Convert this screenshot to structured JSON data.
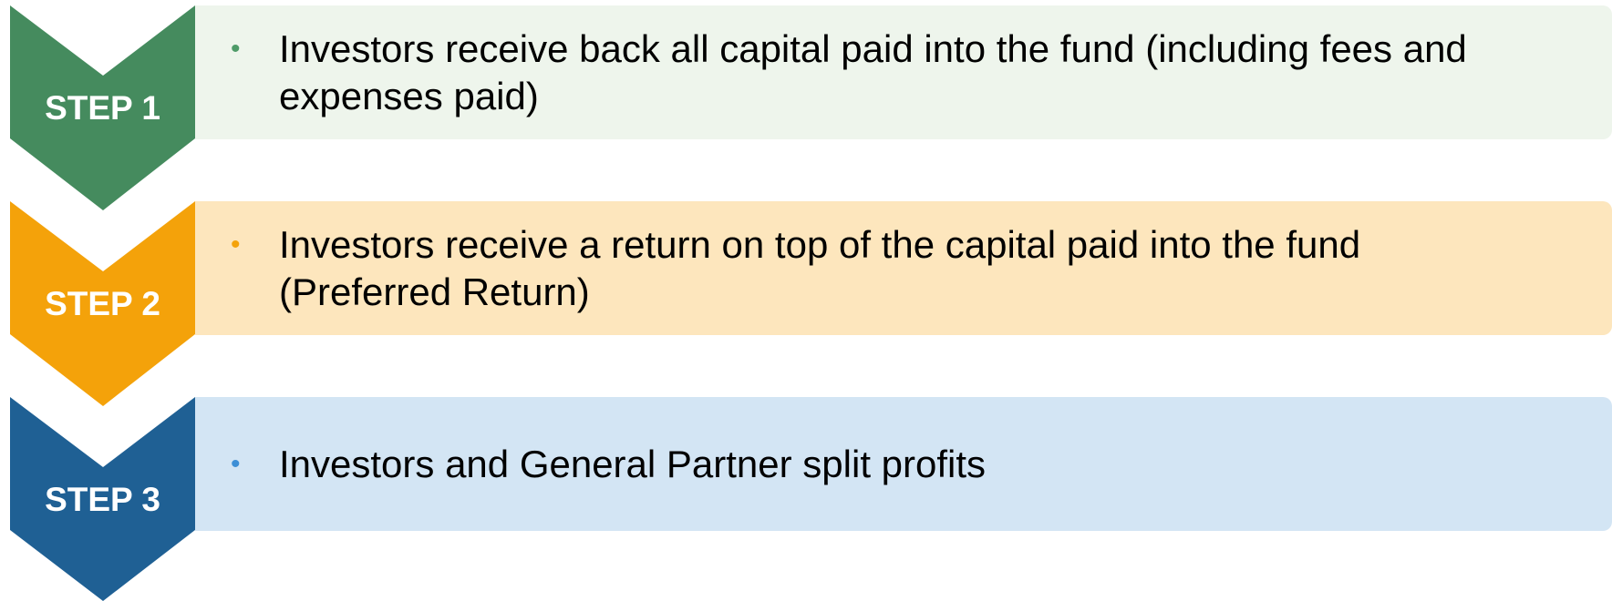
{
  "steps": [
    {
      "label": "STEP 1",
      "lines": [
        "Investors receive back all capital paid into the fund (including fees and",
        "expenses paid)"
      ]
    },
    {
      "label": "STEP 2",
      "lines": [
        "Investors receive a return on top of the capital paid into the fund",
        "(Preferred Return)"
      ]
    },
    {
      "label": "STEP 3",
      "lines": [
        "Investors and General Partner split profits"
      ]
    }
  ]
}
